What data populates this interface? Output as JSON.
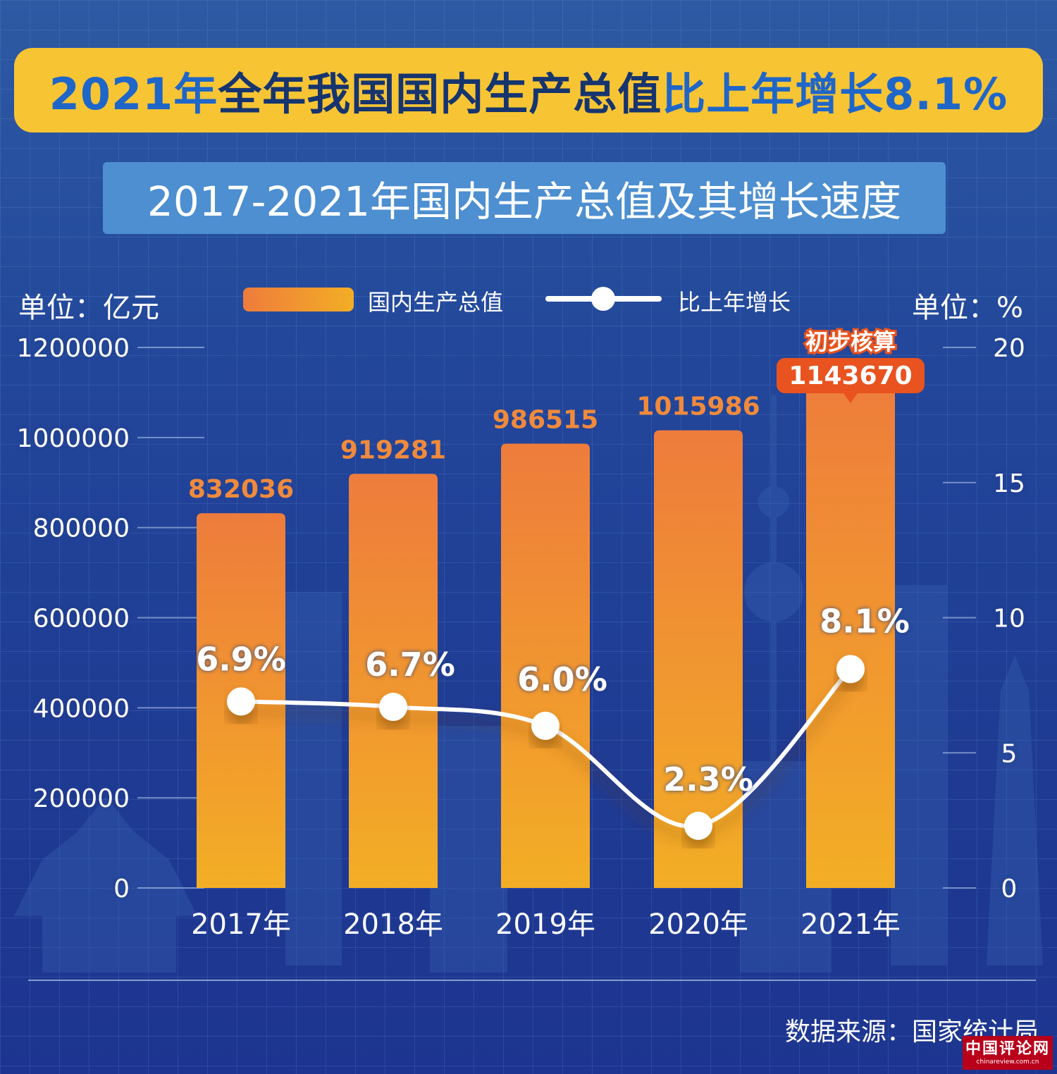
{
  "headline": {
    "part1": "2021年 ",
    "part2": "全年我国国内生产总值",
    "part3": "比上年增长8.1%"
  },
  "subtitle": "2017-2021年国内生产总值及其增长速度",
  "units": {
    "left": "单位：亿元",
    "right": "单位：%"
  },
  "legend": {
    "bar_label": "国内生产总值",
    "line_label": "比上年增长"
  },
  "callout": {
    "label": "初步核算",
    "value": "1143670"
  },
  "source": "数据来源：国家统计局",
  "watermark": {
    "main": "中国评论网",
    "sub": "chinareview.com.cn"
  },
  "chart_data": {
    "type": "bar",
    "categories": [
      "2017年",
      "2018年",
      "2019年",
      "2020年",
      "2021年"
    ],
    "series": [
      {
        "name": "国内生产总值",
        "type": "bar",
        "axis": "left",
        "values": [
          832036,
          919281,
          986515,
          1015986,
          1143670
        ],
        "labels": [
          "832036",
          "919281",
          "986515",
          "1015986",
          "1143670"
        ]
      },
      {
        "name": "比上年增长",
        "type": "line",
        "axis": "right",
        "values": [
          6.9,
          6.7,
          6.0,
          2.3,
          8.1
        ],
        "labels": [
          "6.9%",
          "6.7%",
          "6.0%",
          "2.3%",
          "8.1%"
        ]
      }
    ],
    "y_left": {
      "ylim": [
        0,
        1200000
      ],
      "ticks": [
        0,
        200000,
        400000,
        600000,
        800000,
        1000000,
        1200000
      ]
    },
    "y_right": {
      "ylim": [
        0,
        20
      ],
      "ticks": [
        0,
        5,
        10,
        15,
        20
      ]
    },
    "colors": {
      "bar_top": "#ee7c3c",
      "bar_bottom": "#f3ae25",
      "line": "#ffffff",
      "bar_label": "#f08a3c",
      "callout_bg": "#e8531f"
    },
    "grid": true
  }
}
